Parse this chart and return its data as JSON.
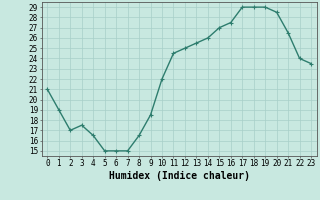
{
  "xlabel": "Humidex (Indice chaleur)",
  "x": [
    0,
    1,
    2,
    3,
    4,
    5,
    6,
    7,
    8,
    9,
    10,
    11,
    12,
    13,
    14,
    15,
    16,
    17,
    18,
    19,
    20,
    21,
    22,
    23
  ],
  "y": [
    21,
    19,
    17,
    17.5,
    16.5,
    15,
    15,
    15,
    16.5,
    18.5,
    22,
    24.5,
    25,
    25.5,
    26,
    27,
    27.5,
    29,
    29,
    29,
    28.5,
    26.5,
    24,
    23.5
  ],
  "line_color": "#2e7d6e",
  "bg_color": "#c8e8e0",
  "grid_color": "#a8cfc8",
  "ylim": [
    14.5,
    29.5
  ],
  "yticks": [
    15,
    16,
    17,
    18,
    19,
    20,
    21,
    22,
    23,
    24,
    25,
    26,
    27,
    28,
    29
  ],
  "xlim": [
    -0.5,
    23.5
  ],
  "marker": "+",
  "marker_size": 3,
  "line_width": 1.0,
  "tick_font_size": 5.5,
  "xlabel_font_size": 7.0
}
